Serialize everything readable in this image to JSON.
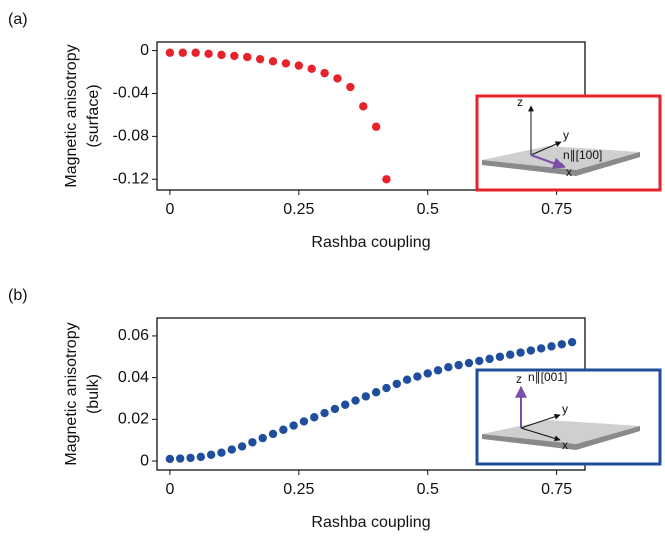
{
  "chart_data": [
    {
      "type": "scatter",
      "panel_label": "(a)",
      "xlabel": "Rashba coupling",
      "ylabel": [
        "Magnetic anisotropy",
        "(surface)"
      ],
      "color": "#e8222a",
      "frame_color": "#e8222a",
      "x": [
        0,
        0.025,
        0.05,
        0.075,
        0.1,
        0.125,
        0.15,
        0.175,
        0.2,
        0.225,
        0.25,
        0.275,
        0.3,
        0.325,
        0.35,
        0.375,
        0.4,
        0.42
      ],
      "values": [
        -0.002,
        -0.002,
        -0.002,
        -0.003,
        -0.004,
        -0.005,
        -0.006,
        -0.008,
        -0.01,
        -0.012,
        -0.014,
        -0.017,
        -0.021,
        -0.026,
        -0.034,
        -0.052,
        -0.071,
        -0.12
      ],
      "xlim": [
        -0.025,
        0.805
      ],
      "ylim": [
        -0.13,
        0.008
      ],
      "xticks": [
        0,
        0.25,
        0.5,
        0.75
      ],
      "yticks": [
        0,
        -0.04,
        -0.08,
        -0.12
      ],
      "inset": {
        "z": "z",
        "y": "y",
        "x": "x",
        "n": "n∥[100]"
      }
    },
    {
      "type": "scatter",
      "panel_label": "(b)",
      "xlabel": "Rashba coupling",
      "ylabel": [
        "Magnetic anisotropy",
        "(bulk)"
      ],
      "color": "#1f4e9e",
      "frame_color": "#1f4e9e",
      "x": [
        0,
        0.02,
        0.04,
        0.06,
        0.08,
        0.1,
        0.12,
        0.14,
        0.16,
        0.18,
        0.2,
        0.22,
        0.24,
        0.26,
        0.28,
        0.3,
        0.32,
        0.34,
        0.36,
        0.38,
        0.4,
        0.42,
        0.44,
        0.46,
        0.48,
        0.5,
        0.52,
        0.54,
        0.56,
        0.58,
        0.6,
        0.62,
        0.64,
        0.66,
        0.68,
        0.7,
        0.72,
        0.74,
        0.76,
        0.78
      ],
      "values": [
        0.001,
        0.0012,
        0.0015,
        0.002,
        0.003,
        0.004,
        0.0055,
        0.007,
        0.009,
        0.011,
        0.013,
        0.015,
        0.017,
        0.019,
        0.021,
        0.023,
        0.025,
        0.027,
        0.029,
        0.031,
        0.033,
        0.035,
        0.037,
        0.039,
        0.0405,
        0.042,
        0.0435,
        0.045,
        0.046,
        0.047,
        0.048,
        0.049,
        0.05,
        0.051,
        0.052,
        0.053,
        0.054,
        0.055,
        0.056,
        0.057
      ],
      "xlim": [
        -0.025,
        0.805
      ],
      "ylim": [
        -0.0043,
        0.0686
      ],
      "xticks": [
        0,
        0.25,
        0.5,
        0.75
      ],
      "yticks": [
        0,
        0.02,
        0.04,
        0.06
      ],
      "inset": {
        "z": "z",
        "y": "y",
        "x": "x",
        "n": "n∥[001]"
      }
    }
  ]
}
